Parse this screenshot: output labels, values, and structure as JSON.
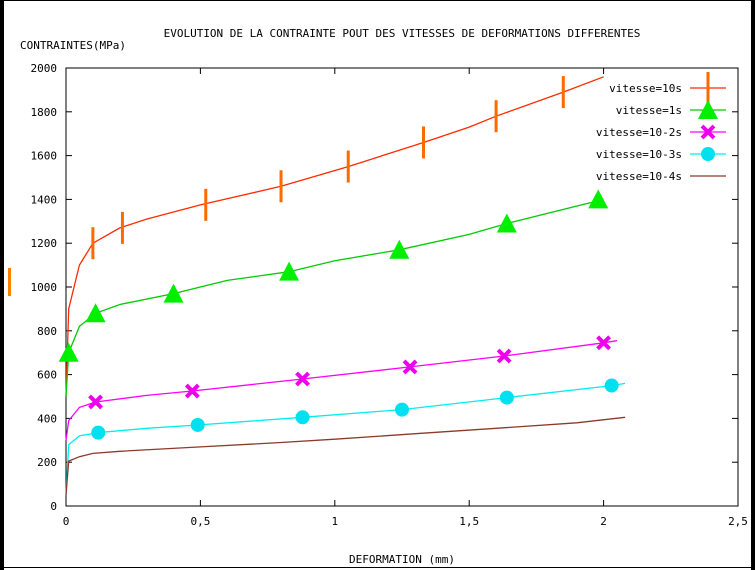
{
  "chart_data": {
    "type": "line",
    "title": "EVOLUTION DE LA CONTRAINTE POUT DES VITESSES DE DEFORMATIONS DIFFERENTES",
    "ylabel": "CONTRAINTES(MPa)",
    "xlabel": "DEFORMATION (mm)",
    "xlim": [
      0,
      2.5
    ],
    "ylim": [
      0,
      2000
    ],
    "xticks": [
      "0",
      "0,5",
      "1",
      "1,5",
      "2",
      "2,5"
    ],
    "yticks": [
      "0",
      "200",
      "400",
      "600",
      "800",
      "1000",
      "1200",
      "1400",
      "1600",
      "1800",
      "2000"
    ],
    "legend_position": "top-right",
    "series": [
      {
        "name": "vitesse=10s",
        "color": "#ff2a00",
        "marker": "vbar",
        "marker_color": "#ff6a00",
        "x": [
          0,
          0.01,
          0.05,
          0.1,
          0.2,
          0.3,
          0.5,
          0.8,
          1.05,
          1.33,
          1.5,
          1.6,
          1.85,
          2.0
        ],
        "y": [
          500,
          900,
          1100,
          1200,
          1270,
          1310,
          1375,
          1460,
          1550,
          1660,
          1730,
          1780,
          1890,
          1960
        ],
        "markers_x": [
          0.1,
          0.21,
          0.52,
          0.8,
          1.05,
          1.33,
          1.6,
          1.85
        ],
        "markers_y": [
          1200,
          1270,
          1375,
          1460,
          1550,
          1660,
          1780,
          1890
        ]
      },
      {
        "name": "vitesse=1s",
        "color": "#00cc00",
        "marker": "triangle",
        "marker_color": "#00ee00",
        "x": [
          0,
          0.01,
          0.05,
          0.11,
          0.2,
          0.4,
          0.6,
          0.83,
          1.0,
          1.24,
          1.5,
          1.64,
          2.0
        ],
        "y": [
          500,
          700,
          820,
          880,
          920,
          970,
          1030,
          1070,
          1120,
          1170,
          1240,
          1290,
          1400
        ],
        "markers_x": [
          0.01,
          0.11,
          0.4,
          0.83,
          1.24,
          1.64,
          1.98
        ],
        "markers_y": [
          700,
          880,
          970,
          1070,
          1170,
          1290,
          1400
        ]
      },
      {
        "name": "vitesse=10-2s",
        "color": "#ff00ff",
        "marker": "cross",
        "marker_color": "#ee00ee",
        "x": [
          0,
          0.01,
          0.05,
          0.11,
          0.3,
          0.47,
          0.88,
          1.28,
          1.63,
          2.0,
          2.05
        ],
        "y": [
          300,
          390,
          450,
          475,
          505,
          525,
          580,
          635,
          685,
          745,
          755
        ],
        "markers_x": [
          0.11,
          0.47,
          0.88,
          1.28,
          1.63,
          2.0
        ],
        "markers_y": [
          475,
          525,
          580,
          635,
          685,
          745
        ]
      },
      {
        "name": "vitesse=10-3s",
        "color": "#00eeee",
        "marker": "circle",
        "marker_color": "#00e0f0",
        "x": [
          0,
          0.01,
          0.05,
          0.12,
          0.3,
          0.49,
          0.88,
          1.25,
          1.64,
          2.03,
          2.08
        ],
        "y": [
          50,
          280,
          320,
          335,
          355,
          370,
          405,
          440,
          495,
          550,
          560
        ],
        "markers_x": [
          0.12,
          0.49,
          0.88,
          1.25,
          1.64,
          2.03
        ],
        "markers_y": [
          335,
          370,
          405,
          440,
          495,
          550
        ]
      },
      {
        "name": "vitesse=10-4s",
        "color": "#8b3a2a",
        "marker": "none",
        "marker_color": "#8b3a2a",
        "x": [
          0,
          0.01,
          0.05,
          0.1,
          0.2,
          0.5,
          0.8,
          1.0,
          1.3,
          1.6,
          1.9,
          2.08
        ],
        "y": [
          50,
          205,
          225,
          240,
          250,
          270,
          290,
          305,
          330,
          355,
          380,
          405
        ]
      }
    ]
  }
}
